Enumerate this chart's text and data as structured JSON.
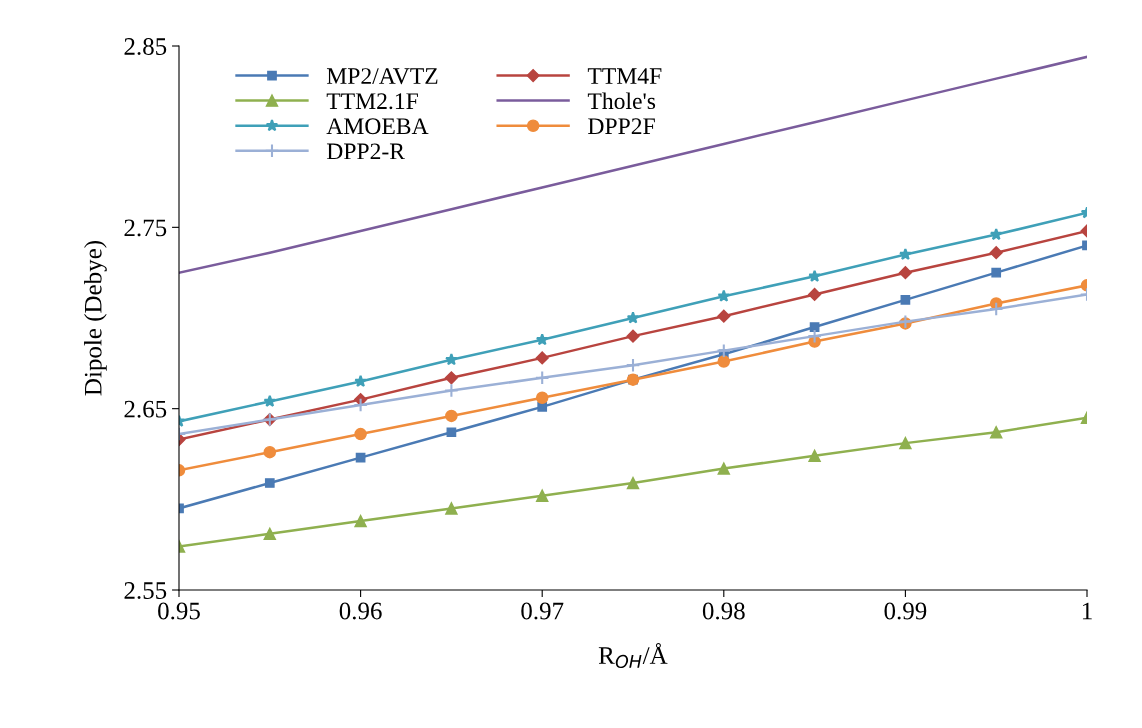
{
  "chart_data": {
    "type": "line",
    "xlabel": "R$_{OH}$/Å",
    "ylabel": "Dipole (Debye)",
    "x": [
      0.95,
      0.955,
      0.96,
      0.965,
      0.97,
      0.975,
      0.98,
      0.985,
      0.99,
      0.995,
      1
    ],
    "xlim": [
      0.95,
      1
    ],
    "xticks": [
      0.95,
      0.96,
      0.97,
      0.98,
      0.99,
      {
        "value": 1,
        "label": "1"
      }
    ],
    "ylim": [
      2.55,
      2.85
    ],
    "yticks": [
      2.55,
      2.65,
      2.75,
      2.85
    ],
    "grid": false,
    "legend": "top left",
    "series": [
      {
        "name": "MP2/AVTZ",
        "color": "#4a7ab4",
        "marker": "square",
        "values": [
          2.595,
          2.609,
          2.623,
          2.637,
          2.651,
          2.666,
          2.68,
          2.695,
          2.71,
          2.725,
          2.74
        ]
      },
      {
        "name": "TTM4F",
        "color": "#b8443f",
        "marker": "diamond",
        "values": [
          2.633,
          2.644,
          2.655,
          2.667,
          2.678,
          2.69,
          2.701,
          2.713,
          2.725,
          2.736,
          2.748
        ]
      },
      {
        "name": "TTM2.1F",
        "color": "#8fb04f",
        "marker": "triangle",
        "values": [
          2.574,
          2.581,
          2.588,
          2.595,
          2.602,
          2.609,
          2.617,
          2.624,
          2.631,
          2.637,
          2.645
        ]
      },
      {
        "name": "Thole's",
        "color": "#7a5c9c",
        "marker": "none",
        "values": [
          2.725,
          2.736,
          2.748,
          2.76,
          2.772,
          2.784,
          2.796,
          2.808,
          2.82,
          2.832,
          2.844
        ]
      },
      {
        "name": "AMOEBA",
        "color": "#3fa0b8",
        "marker": "star",
        "values": [
          2.643,
          2.654,
          2.665,
          2.677,
          2.688,
          2.7,
          2.712,
          2.723,
          2.735,
          2.746,
          2.758
        ]
      },
      {
        "name": "DPP2F",
        "color": "#ef8c3c",
        "marker": "circle",
        "values": [
          2.616,
          2.626,
          2.636,
          2.646,
          2.656,
          2.666,
          2.676,
          2.687,
          2.697,
          2.708,
          2.718
        ]
      },
      {
        "name": "DPP2-R",
        "color": "#9bb0d6",
        "marker": "cross",
        "values": [
          2.636,
          2.644,
          2.652,
          2.66,
          2.667,
          2.674,
          2.682,
          2.69,
          2.698,
          2.705,
          2.713
        ]
      }
    ]
  }
}
